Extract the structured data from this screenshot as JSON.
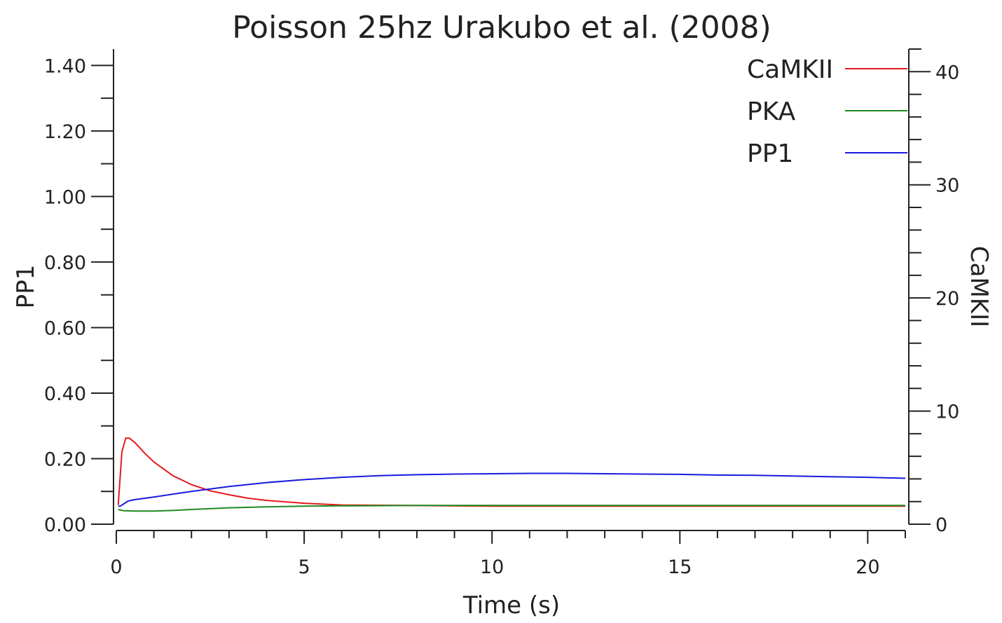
{
  "chart_data": {
    "type": "line",
    "title": "Poisson 25hz Urakubo et al. (2008)",
    "xlabel": "Time (s)",
    "ylabel_left": "PP1",
    "ylabel_right": "CaMKII",
    "xlim": [
      0,
      21
    ],
    "ylim_left": [
      0,
      1.45
    ],
    "ylim_right": [
      0,
      42
    ],
    "x_ticks": [
      0,
      5,
      10,
      15,
      20
    ],
    "x_minor_step": 1,
    "y_left_ticks": [
      "0.00",
      "0.20",
      "0.40",
      "0.60",
      "0.80",
      "1.00",
      "1.20",
      "1.40"
    ],
    "y_left_minor_step": 0.1,
    "y_right_ticks": [
      "0",
      "10",
      "20",
      "30",
      "40"
    ],
    "y_right_minor_step": 2,
    "grid": false,
    "legend_position": "top-right",
    "series": [
      {
        "name": "CaMKII",
        "axis": "right",
        "color": "#e41a1c",
        "x": [
          0.05,
          0.15,
          0.25,
          0.35,
          0.5,
          0.75,
          1.0,
          1.5,
          2.0,
          2.5,
          3.0,
          3.5,
          4.0,
          5.0,
          6.0,
          8.0,
          10.0,
          12.0,
          15.0,
          18.0,
          21.0
        ],
        "y": [
          1.7,
          6.4,
          7.6,
          7.6,
          7.2,
          6.3,
          5.5,
          4.3,
          3.5,
          2.95,
          2.6,
          2.3,
          2.1,
          1.85,
          1.7,
          1.65,
          1.6,
          1.6,
          1.6,
          1.6,
          1.6
        ]
      },
      {
        "name": "PKA",
        "axis": "left",
        "color": "#1e8a1e",
        "x": [
          0.05,
          0.2,
          0.5,
          1.0,
          1.5,
          2.0,
          3.0,
          4.0,
          5.0,
          6.0,
          8.0,
          10.0,
          12.0,
          15.0,
          18.0,
          21.0
        ],
        "y": [
          0.045,
          0.041,
          0.04,
          0.04,
          0.042,
          0.045,
          0.05,
          0.053,
          0.055,
          0.056,
          0.057,
          0.057,
          0.057,
          0.057,
          0.057,
          0.057
        ]
      },
      {
        "name": "PP1",
        "axis": "left",
        "color": "#1a1adf",
        "x": [
          0.05,
          0.1,
          0.2,
          0.3,
          0.4,
          0.5,
          1.0,
          2.0,
          3.0,
          4.0,
          5.0,
          6.0,
          7.0,
          8.0,
          9.0,
          10.0,
          11.0,
          12.0,
          13.0,
          14.0,
          15.0,
          16.0,
          17.0,
          18.0,
          19.0,
          20.0,
          21.0
        ],
        "y": [
          0.055,
          0.055,
          0.062,
          0.07,
          0.073,
          0.075,
          0.083,
          0.1,
          0.115,
          0.127,
          0.136,
          0.143,
          0.148,
          0.151,
          0.153,
          0.154,
          0.155,
          0.155,
          0.154,
          0.153,
          0.152,
          0.15,
          0.149,
          0.147,
          0.145,
          0.143,
          0.14
        ]
      }
    ]
  }
}
